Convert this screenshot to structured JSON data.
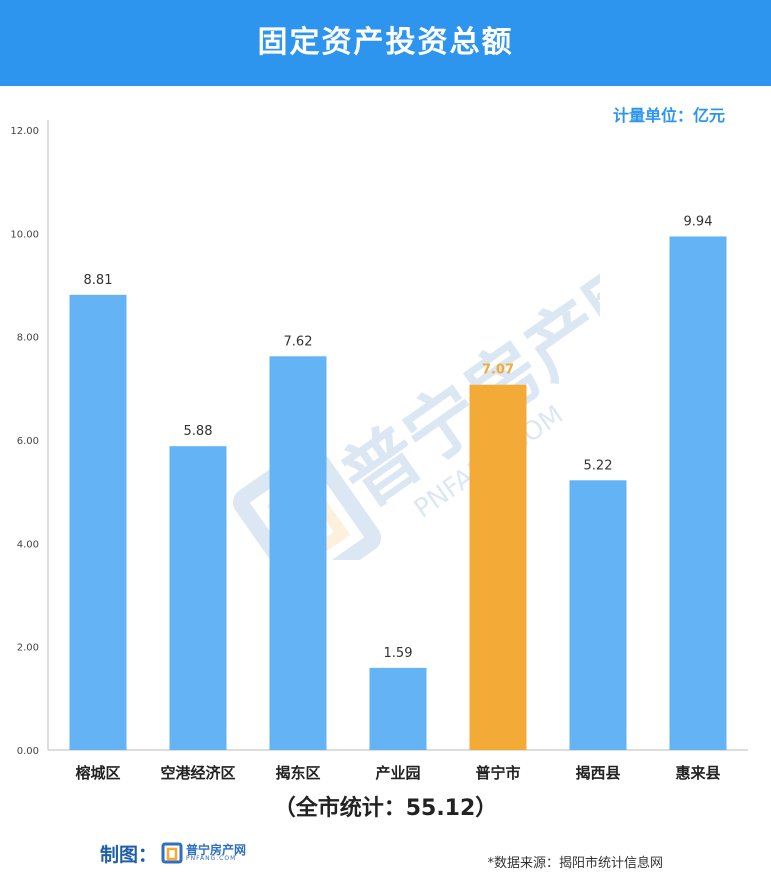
{
  "header": {
    "title": "固定资产投资总额"
  },
  "unit_label": "计量单位：亿元",
  "total_label": "（全市统计：55.12）",
  "maker": {
    "label": "制图：",
    "logo_cn": "普宁房产网",
    "logo_en": "PNFANG.COM"
  },
  "source": "*数据来源：揭阳市统计信息网",
  "watermark": {
    "cn": "普宁房产网",
    "en": "PNFANG.COM"
  },
  "colors": {
    "header": "#2e95ef",
    "bar": "#64b3f5",
    "highlight": "#f4aa36",
    "axis": "#bbbbbb"
  },
  "chart_data": {
    "type": "bar",
    "categories": [
      "榕城区",
      "空港经济区",
      "揭东区",
      "产业园",
      "普宁市",
      "揭西县",
      "惠来县"
    ],
    "values": [
      8.81,
      5.88,
      7.62,
      1.59,
      7.07,
      5.22,
      9.94
    ],
    "value_labels": [
      "8.81",
      "5.88",
      "7.62",
      "1.59",
      "7.07",
      "5.22",
      "9.94"
    ],
    "highlight_category": "普宁市",
    "ylim": [
      0,
      12
    ],
    "yticks": [
      "0.00",
      "2.00",
      "4.00",
      "6.00",
      "8.00",
      "10.00",
      "12.00"
    ],
    "title": "固定资产投资总额",
    "xlabel": "",
    "ylabel": "",
    "grid": false,
    "legend": "none"
  }
}
